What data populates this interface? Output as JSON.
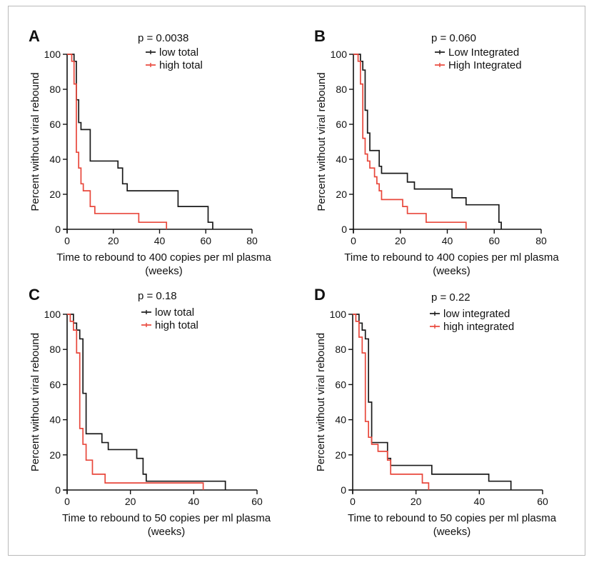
{
  "colors": {
    "series_black": "#1a1a1a",
    "series_red": "#e8473b",
    "axis": "#111111",
    "frame": "#b9b9b9"
  },
  "chart_data": [
    {
      "panel": "A",
      "type": "line",
      "step": true,
      "annotation": "p = 0.0038",
      "xlabel": "Time to rebound to 400 copies per ml plasma",
      "xlabel2": "(weeks)",
      "ylabel": "Percent without viral rebound",
      "xlim": [
        0,
        80
      ],
      "ylim": [
        0,
        100
      ],
      "xticks": [
        0,
        20,
        40,
        60,
        80
      ],
      "yticks": [
        0,
        20,
        40,
        60,
        80,
        100
      ],
      "grid": false,
      "legend": "top-right",
      "series": [
        {
          "name": "low total",
          "color": "black",
          "x": [
            0,
            3,
            4,
            5,
            6,
            10,
            22,
            24,
            26,
            48,
            61,
            63
          ],
          "y": [
            100,
            96,
            74,
            61,
            57,
            39,
            35,
            26,
            22,
            13,
            4,
            0
          ]
        },
        {
          "name": "high total",
          "color": "red",
          "x": [
            0,
            2,
            3,
            4,
            5,
            6,
            7,
            10,
            12,
            31,
            43
          ],
          "y": [
            100,
            96,
            83,
            44,
            35,
            26,
            22,
            13,
            9,
            4,
            0
          ]
        }
      ]
    },
    {
      "panel": "B",
      "type": "line",
      "step": true,
      "annotation": "p = 0.060",
      "xlabel": "Time to rebound to 400 copies per ml plasma",
      "xlabel2": "(weeks)",
      "ylabel": "Percent without viral rebound",
      "xlim": [
        0,
        80
      ],
      "ylim": [
        0,
        100
      ],
      "xticks": [
        0,
        20,
        40,
        60,
        80
      ],
      "yticks": [
        0,
        20,
        40,
        60,
        80,
        100
      ],
      "grid": false,
      "legend": "top-right",
      "series": [
        {
          "name": "Low Integrated",
          "color": "black",
          "x": [
            0,
            3,
            4,
            5,
            6,
            7,
            11,
            12,
            23,
            26,
            42,
            48,
            62,
            63
          ],
          "y": [
            100,
            96,
            91,
            68,
            55,
            45,
            36,
            32,
            27,
            23,
            18,
            14,
            4,
            0
          ]
        },
        {
          "name": "High Integrated",
          "color": "red",
          "x": [
            0,
            2,
            3,
            4,
            5,
            6,
            7,
            9,
            10,
            11,
            12,
            21,
            23,
            31,
            48
          ],
          "y": [
            100,
            96,
            83,
            52,
            43,
            39,
            35,
            30,
            26,
            22,
            17,
            13,
            9,
            4,
            0
          ]
        }
      ]
    },
    {
      "panel": "C",
      "type": "line",
      "step": true,
      "annotation": "p = 0.18",
      "xlabel": "Time to rebound to 50 copies per ml plasma",
      "xlabel2": "(weeks)",
      "ylabel": "Percent without viral rebound",
      "xlim": [
        0,
        60
      ],
      "ylim": [
        0,
        100
      ],
      "xticks": [
        0,
        20,
        40,
        60
      ],
      "yticks": [
        0,
        20,
        40,
        60,
        80,
        100
      ],
      "grid": false,
      "legend": "top-right",
      "series": [
        {
          "name": "low total",
          "color": "black",
          "x": [
            0,
            2,
            3,
            4,
            5,
            6,
            11,
            13,
            22,
            24,
            25,
            50
          ],
          "y": [
            100,
            95,
            91,
            86,
            55,
            32,
            27,
            23,
            18,
            9,
            5,
            0
          ]
        },
        {
          "name": "high total",
          "color": "red",
          "x": [
            0,
            1,
            2,
            3,
            4,
            5,
            6,
            8,
            12,
            43
          ],
          "y": [
            100,
            96,
            91,
            78,
            35,
            26,
            17,
            9,
            4,
            0
          ]
        }
      ]
    },
    {
      "panel": "D",
      "type": "line",
      "step": true,
      "annotation": "p = 0.22",
      "xlabel": "Time to rebound to 50 copies per ml plasma",
      "xlabel2": "(weeks)",
      "ylabel": "Percent without viral rebound",
      "xlim": [
        0,
        60
      ],
      "ylim": [
        0,
        100
      ],
      "xticks": [
        0,
        20,
        40,
        60
      ],
      "yticks": [
        0,
        20,
        40,
        60,
        80,
        100
      ],
      "grid": false,
      "legend": "top-right",
      "series": [
        {
          "name": "low integrated",
          "color": "black",
          "x": [
            0,
            2,
            3,
            4,
            5,
            6,
            11,
            12,
            25,
            43,
            50
          ],
          "y": [
            100,
            95,
            91,
            86,
            50,
            27,
            18,
            14,
            9,
            5,
            0
          ]
        },
        {
          "name": "high integrated",
          "color": "red",
          "x": [
            0,
            1,
            2,
            3,
            4,
            5,
            6,
            8,
            11,
            12,
            22,
            24
          ],
          "y": [
            100,
            96,
            87,
            78,
            39,
            30,
            26,
            22,
            17,
            9,
            4,
            0
          ]
        }
      ]
    }
  ]
}
